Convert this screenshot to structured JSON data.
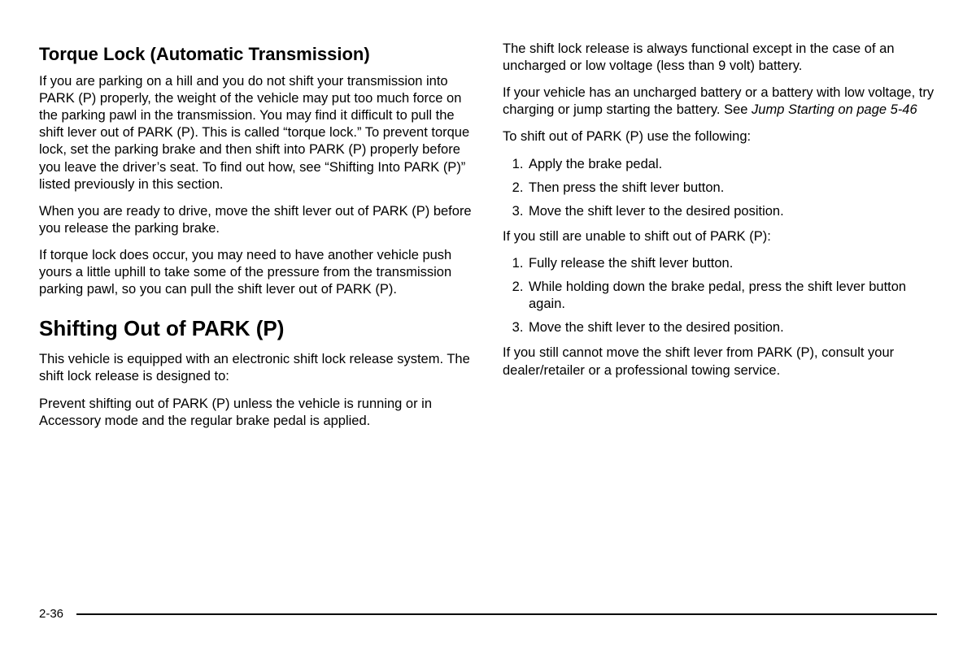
{
  "page_number": "2-36",
  "left": {
    "heading1": "Torque Lock (Automatic Transmission)",
    "p1": "If you are parking on a hill and you do not shift your transmission into PARK (P) properly, the weight of the vehicle may put too much force on the parking pawl in the transmission. You may find it difficult to pull the shift lever out of PARK (P). This is called “torque lock.” To prevent torque lock, set the parking brake and then shift into PARK (P) properly before you leave the driver’s seat. To find out how, see “Shifting Into PARK (P)” listed previously in this section.",
    "p2": "When you are ready to drive, move the shift lever out of PARK (P) before you release the parking brake.",
    "p3": "If torque lock does occur, you may need to have another vehicle push yours a little uphill to take some of the pressure from the transmission parking pawl, so you can pull the shift lever out of PARK (P).",
    "heading2": "Shifting Out of PARK (P)",
    "p4": "This vehicle is equipped with an electronic shift lock release system. The shift lock release is designed to:",
    "p5": "Prevent shifting out of PARK (P) unless the vehicle is running or in Accessory mode and the regular brake pedal is applied."
  },
  "right": {
    "p1": "The shift lock release is always functional except in the case of an uncharged or low voltage (less than 9 volt) battery.",
    "p2a": "If your vehicle has an uncharged battery or a battery with low voltage, try charging or jump starting the battery. See ",
    "p2b_italic": "Jump Starting on page 5-46",
    "p3": "To shift out of PARK (P) use the following:",
    "list1": [
      "Apply the brake pedal.",
      "Then press the shift lever button.",
      "Move the shift lever to the desired position."
    ],
    "p4": "If you still are unable to shift out of PARK (P):",
    "list2": [
      "Fully release the shift lever button.",
      "While holding down the brake pedal, press the shift lever button again.",
      "Move the shift lever to the desired position."
    ],
    "p5": "If you still cannot move the shift lever from PARK (P), consult your dealer/retailer or a professional towing service."
  }
}
